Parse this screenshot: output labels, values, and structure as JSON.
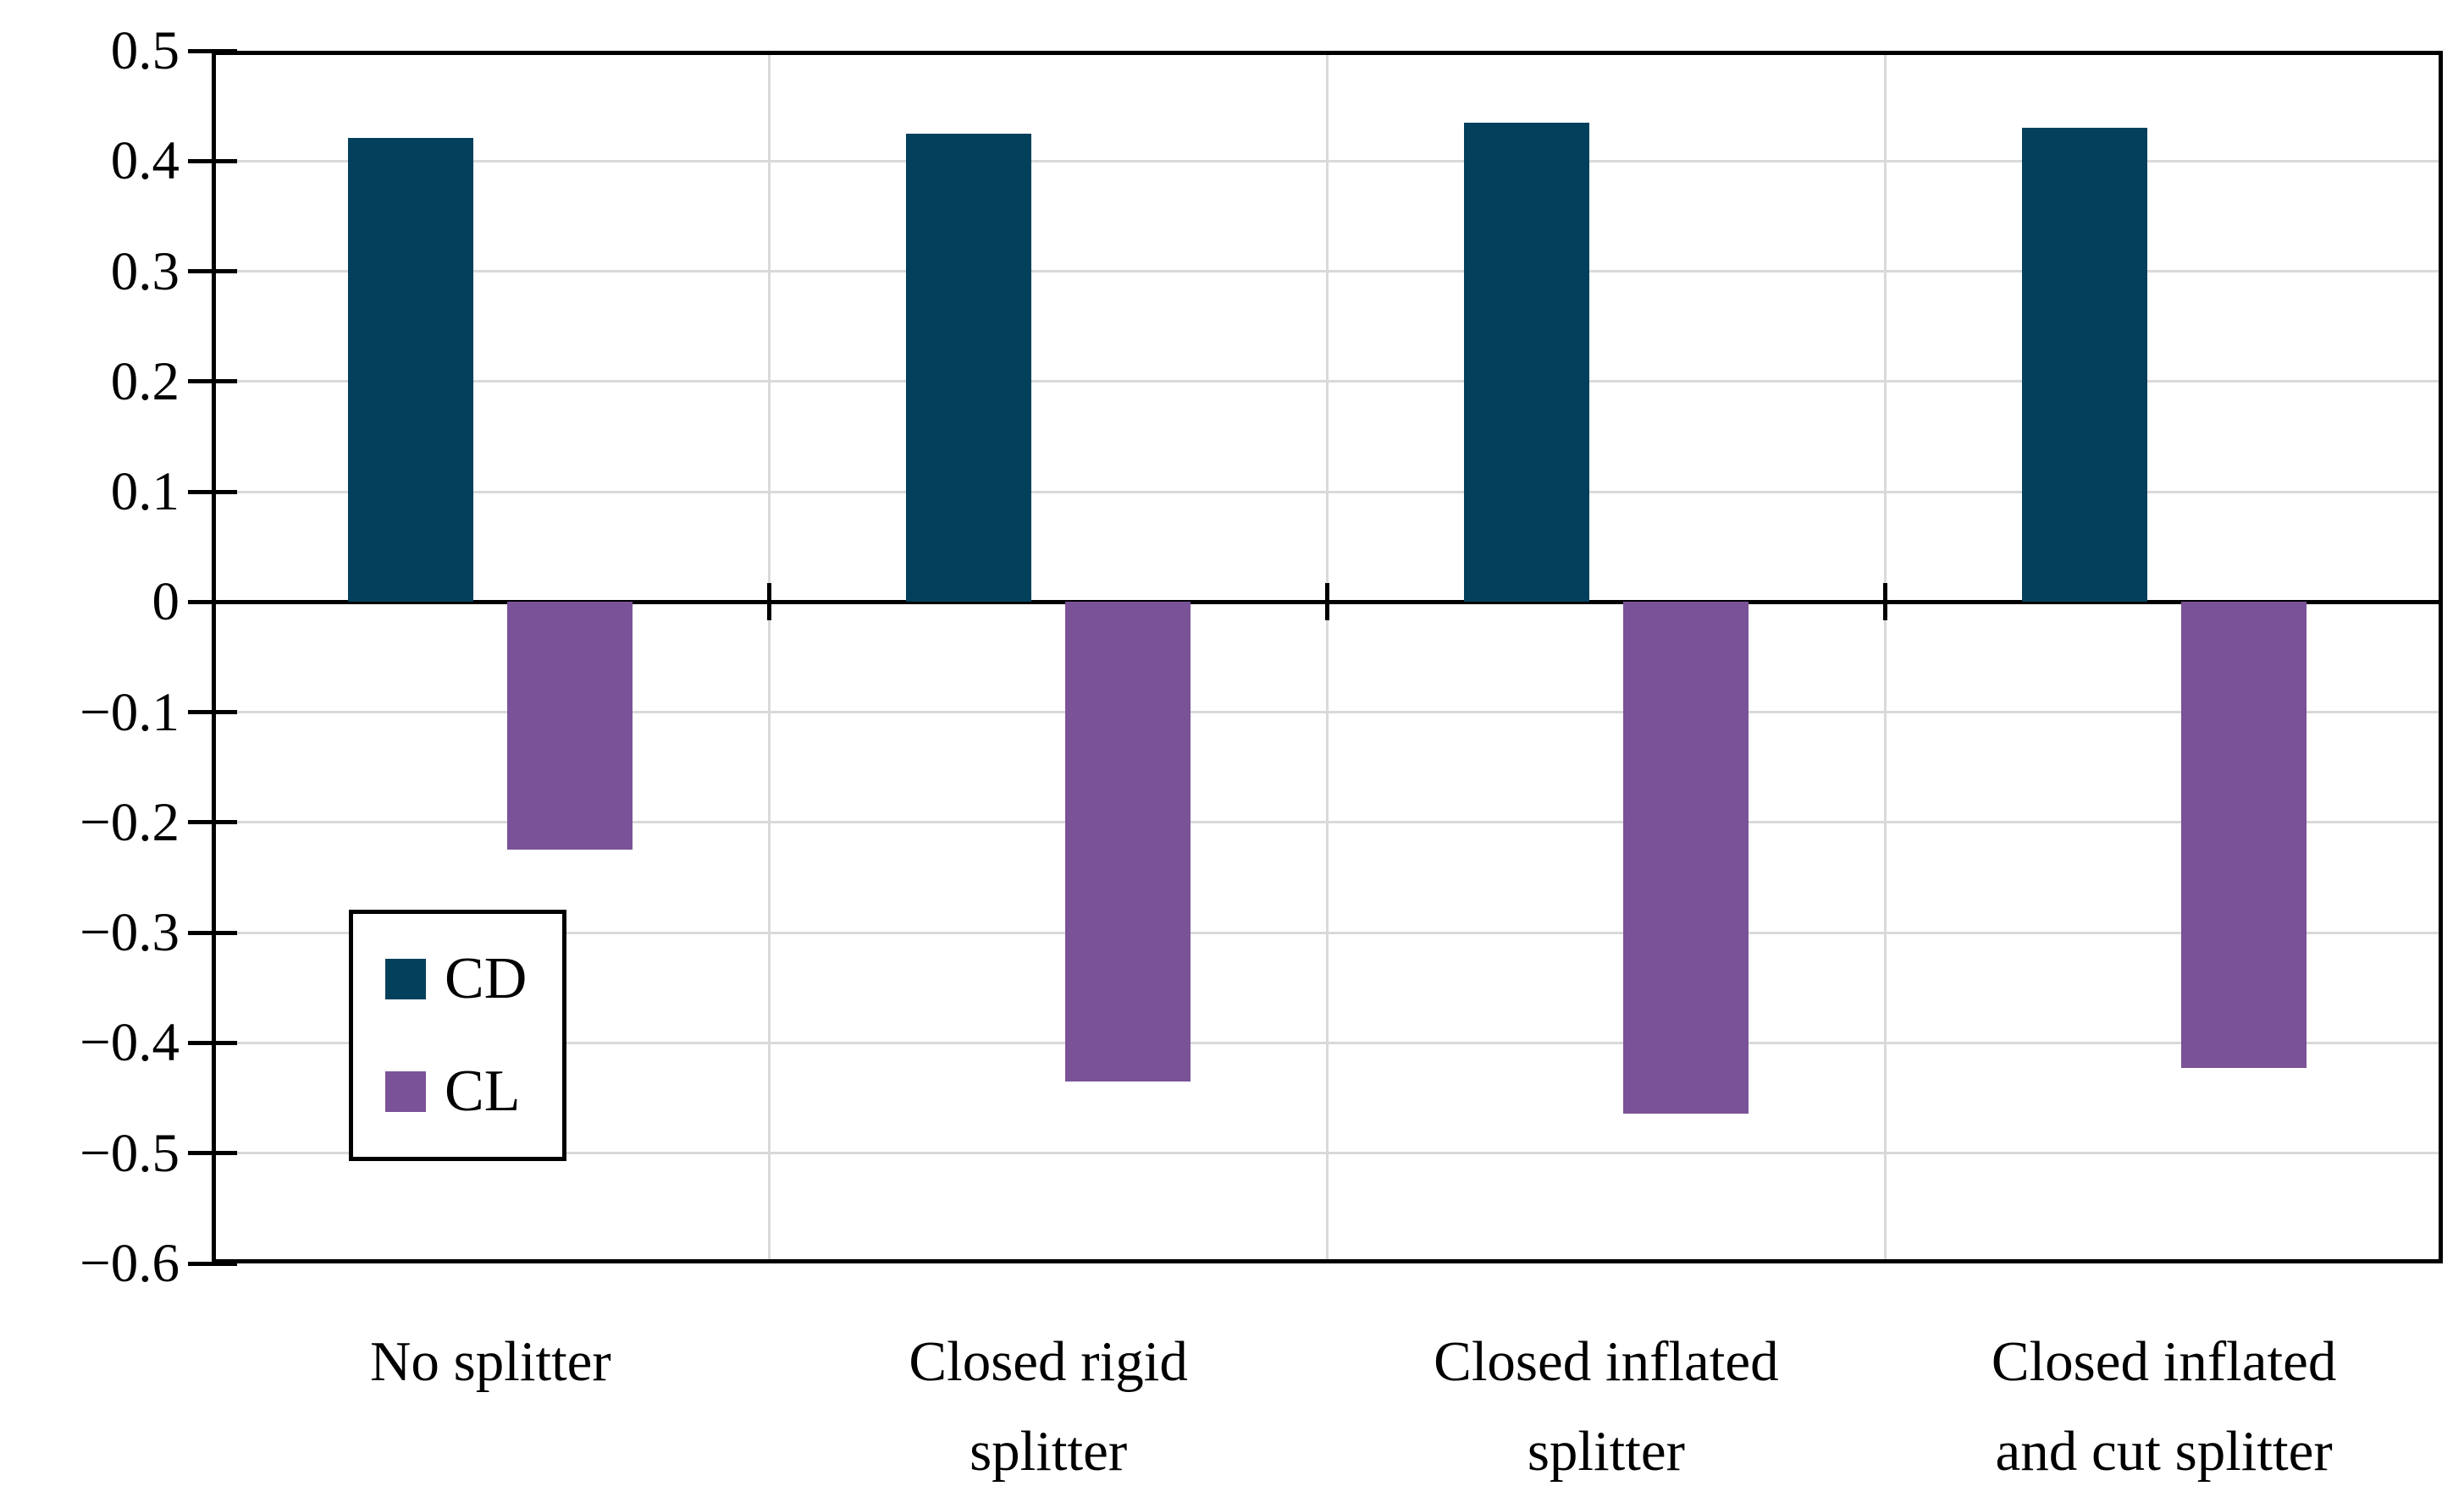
{
  "chart_data": {
    "type": "bar",
    "title": "",
    "xlabel": "",
    "ylabel": "",
    "categories": [
      "No splitter",
      "Closed rigid splitter",
      "Closed inflated splitter",
      "Closed inflated and cut splitter"
    ],
    "category_label_lines": [
      [
        "No splitter"
      ],
      [
        "Closed rigid",
        "splitter"
      ],
      [
        "Closed inflated",
        "splitter"
      ],
      [
        "Closed inflated",
        "and cut splitter"
      ]
    ],
    "series": [
      {
        "name": "CD",
        "color": "#03405c",
        "values": [
          0.421,
          0.425,
          0.435,
          0.43
        ]
      },
      {
        "name": "CL",
        "color": "#7a5298",
        "values": [
          -0.225,
          -0.435,
          -0.464,
          -0.423
        ]
      }
    ],
    "ylim": [
      -0.6,
      0.5
    ],
    "ytick_step": 0.1,
    "ytick_labels": [
      "0.5",
      "0.4",
      "0.3",
      "0.2",
      "0.1",
      "0",
      "−0.1",
      "−0.2",
      "−0.3",
      "−0.4",
      "−0.5",
      "−0.6"
    ],
    "grid": true,
    "grid_color": "#d9d9d9",
    "axis_color": "#000000",
    "legend_position": "inside bottom-left",
    "legend": [
      "CD",
      "CL"
    ]
  }
}
